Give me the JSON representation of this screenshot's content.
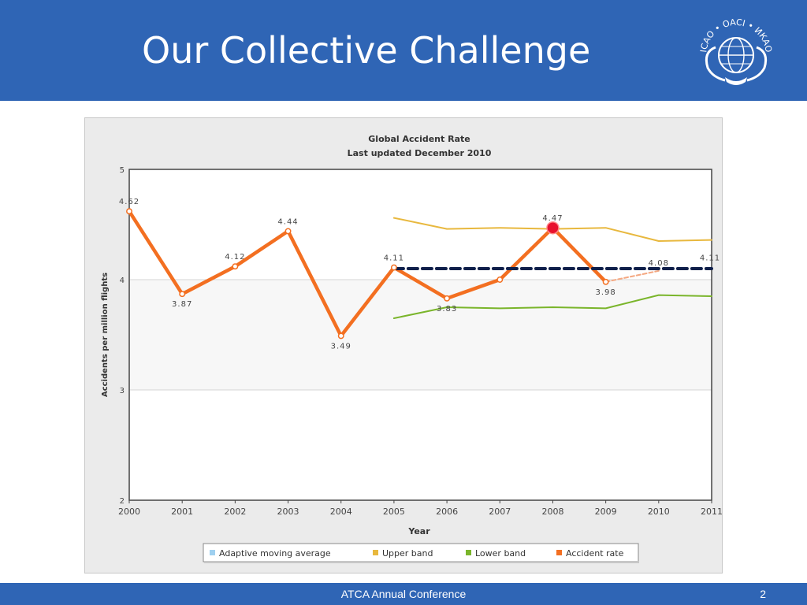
{
  "slide": {
    "title": "Our Collective Challenge",
    "footer_text": "ATCA Annual Conference",
    "page_number": "2"
  },
  "logo": {
    "text": "ICAO • OACI • ИКАО",
    "icon": "icao-emblem-icon"
  },
  "colors": {
    "header_bg": "#2f65b5",
    "accident_rate": "#f36f21",
    "upper_band": "#e8b83e",
    "lower_band": "#7ab52b",
    "adaptive_avg": "#0f1f4a",
    "adaptive_legend": "#9fd0f0",
    "highlight_point": "#e8112d"
  },
  "chart_data": {
    "type": "line",
    "title": "Global Accident Rate",
    "subtitle": "Last updated December 2010",
    "xlabel": "Year",
    "ylabel": "Accidents per million flights",
    "xlim": [
      2000,
      2011
    ],
    "ylim": [
      2,
      5
    ],
    "x_ticks": [
      "2000",
      "2001",
      "2002",
      "2003",
      "2004",
      "2005",
      "2006",
      "2007",
      "2008",
      "2009",
      "2010",
      "2011"
    ],
    "y_ticks": [
      "2",
      "3",
      "4",
      "5"
    ],
    "grid": true,
    "legend_position": "bottom",
    "series": [
      {
        "name": "Accident rate",
        "x": [
          2000,
          2001,
          2002,
          2003,
          2004,
          2005,
          2006,
          2007,
          2008,
          2009
        ],
        "y": [
          4.62,
          3.87,
          4.12,
          4.44,
          3.49,
          4.11,
          3.83,
          4.0,
          4.47,
          3.98
        ],
        "labels": [
          "4.62",
          "3.87",
          "4.12",
          "4.44",
          "3.49",
          "4.11",
          "3.83",
          "",
          "4.47",
          "3.98"
        ]
      },
      {
        "name": "Upper band",
        "x": [
          2005,
          2006,
          2007,
          2008,
          2009,
          2010,
          2011
        ],
        "y": [
          4.56,
          4.46,
          4.47,
          4.46,
          4.47,
          4.35,
          4.36
        ]
      },
      {
        "name": "Lower band",
        "x": [
          2005,
          2006,
          2007,
          2008,
          2009,
          2010,
          2011
        ],
        "y": [
          3.65,
          3.75,
          3.74,
          3.75,
          3.74,
          3.86,
          3.85
        ]
      },
      {
        "name": "Adaptive moving average",
        "x": [
          2005,
          2011
        ],
        "y": [
          4.1,
          4.1
        ]
      }
    ],
    "projection": {
      "x": [
        2009,
        2010
      ],
      "y": [
        3.98,
        4.08
      ],
      "label": "4.08"
    },
    "end_label": {
      "x": 2011,
      "y": 4.11,
      "label": "4.11"
    },
    "highlight": {
      "x": 2008,
      "y": 4.47
    }
  }
}
